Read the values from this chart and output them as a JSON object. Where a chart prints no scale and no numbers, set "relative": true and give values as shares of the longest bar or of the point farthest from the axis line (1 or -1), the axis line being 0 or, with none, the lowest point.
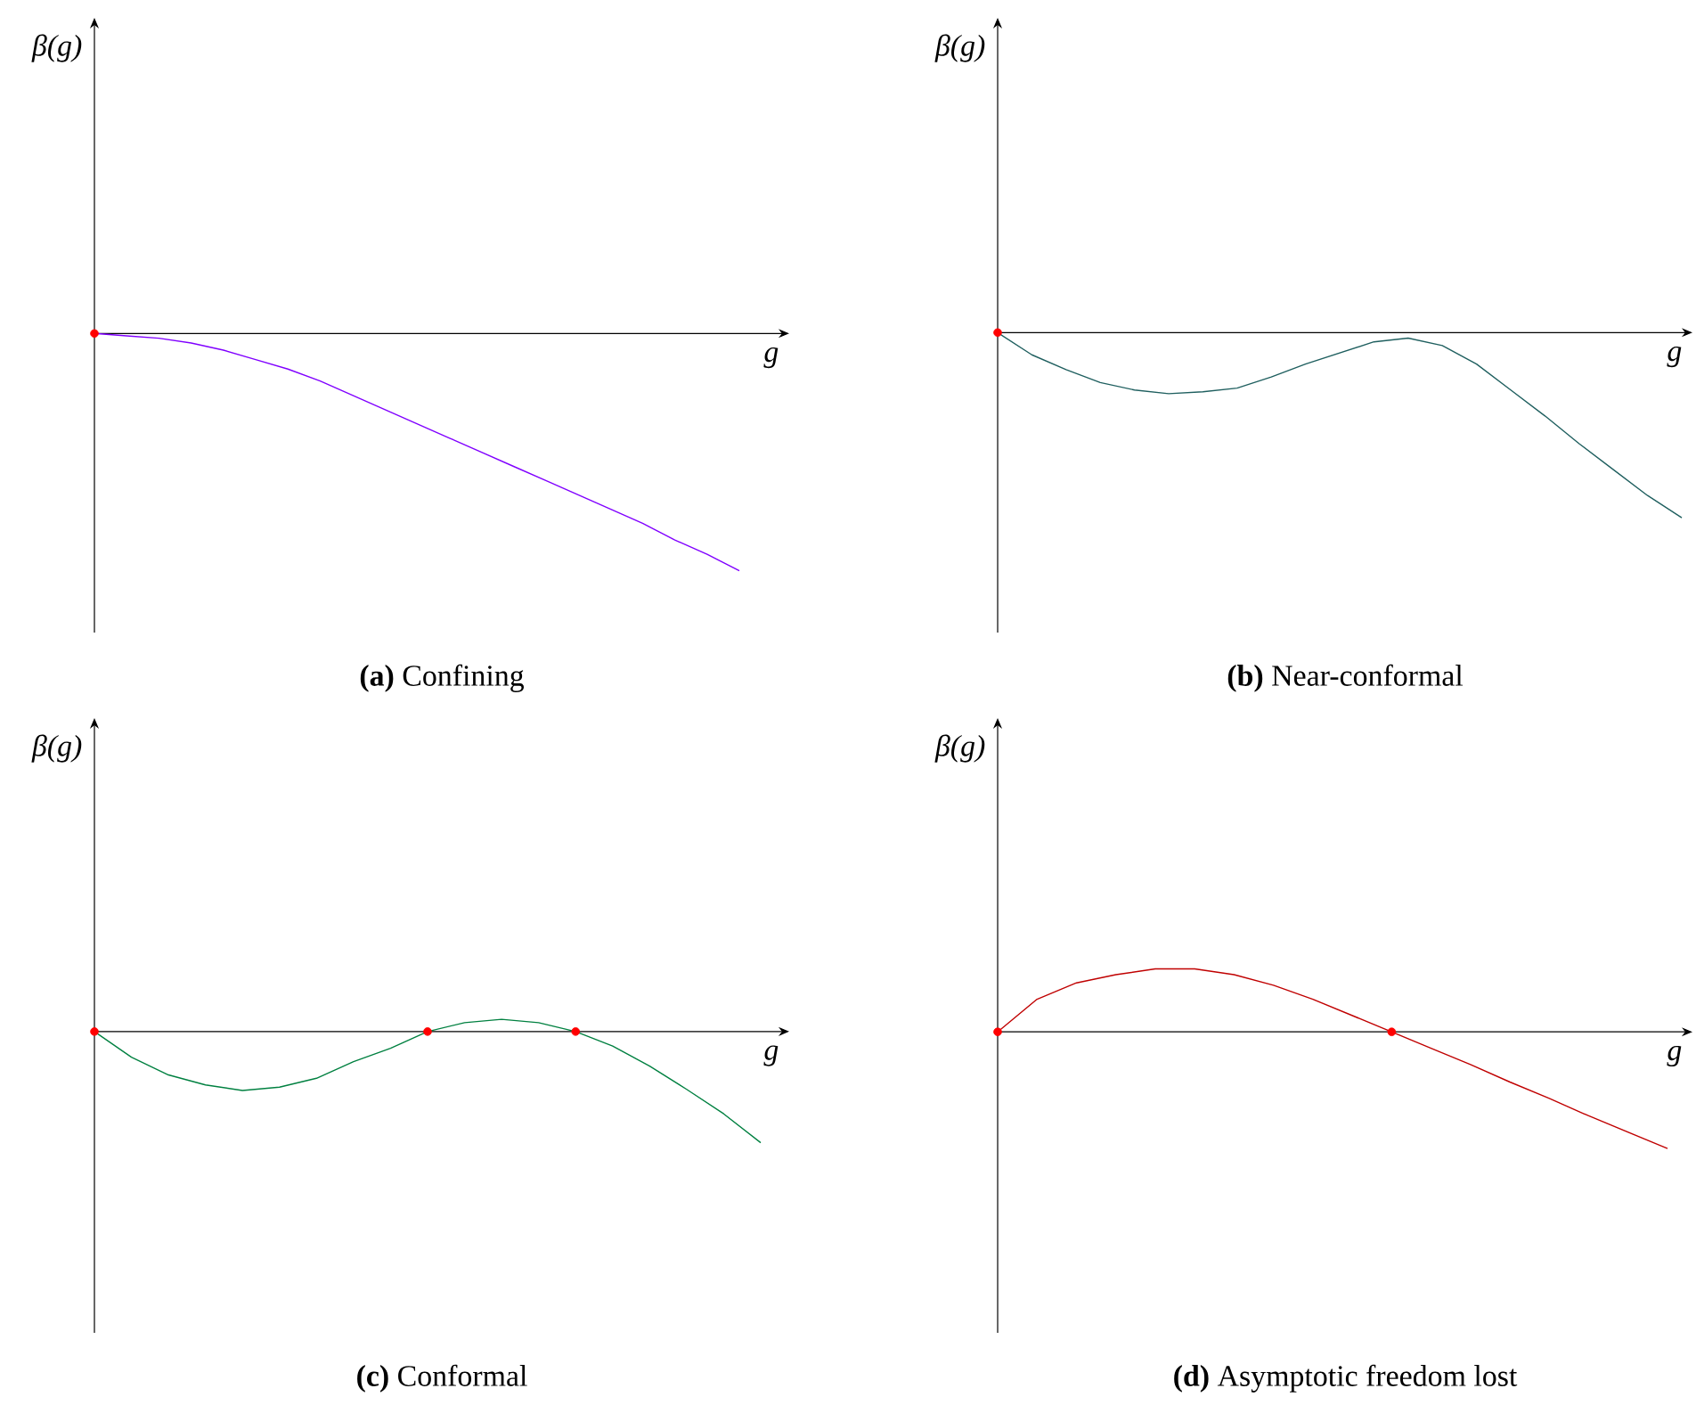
{
  "chart_data": [
    {
      "type": "line",
      "title": "**(a)** Confining",
      "xlabel": "g",
      "ylabel": "β(g)",
      "relative": true,
      "categories": [
        null,
        null,
        null,
        null,
        null,
        null,
        null,
        null,
        null,
        null,
        null,
        null,
        null,
        null,
        null,
        null,
        null,
        null,
        null,
        null,
        null
      ],
      "series": [
        {
          "color": "#8000ff",
          "marker": "none",
          "values": [
            0,
            -0.01,
            -0.02,
            -0.04,
            -0.07,
            -0.11,
            -0.15,
            -0.2,
            -0.26,
            -0.32,
            -0.38,
            -0.44,
            -0.5,
            -0.56,
            -0.62,
            -0.68,
            -0.74,
            -0.8,
            -0.87,
            -0.93,
            -1
          ]
        }
      ]
    },
    {
      "type": "line",
      "title": "**(b)** Near-conformal",
      "xlabel": "g",
      "ylabel": "β(g)",
      "relative": true,
      "categories": [
        null,
        null,
        null,
        null,
        null,
        null,
        null,
        null,
        null,
        null,
        null,
        null,
        null,
        null,
        null,
        null,
        null,
        null,
        null,
        null,
        null
      ],
      "series": [
        {
          "color": "#1f5f5f",
          "marker": "none",
          "values": [
            0,
            -0.12,
            -0.2,
            -0.27,
            -0.31,
            -0.33,
            -0.32,
            -0.3,
            -0.24,
            -0.17,
            -0.11,
            -0.05,
            -0.03,
            -0.07,
            -0.17,
            -0.31,
            -0.45,
            -0.6,
            -0.74,
            -0.88,
            -1
          ]
        }
      ]
    },
    {
      "type": "line",
      "title": "**(c)** Conformal",
      "xlabel": "g",
      "ylabel": "β(g)",
      "relative": true,
      "categories": [
        null,
        null,
        null,
        null,
        null,
        null,
        null,
        null,
        null,
        null,
        null,
        null,
        null,
        null,
        null,
        null,
        null,
        null,
        null
      ],
      "series": [
        {
          "color": "#008040",
          "marker": "none",
          "values": [
            0,
            -0.23,
            -0.39,
            -0.48,
            -0.53,
            -0.5,
            -0.42,
            -0.27,
            -0.15,
            0,
            0.08,
            0.11,
            0.08,
            0,
            -0.13,
            -0.31,
            -0.52,
            -0.74,
            -1
          ]
        }
      ]
    },
    {
      "type": "line",
      "title": "**(d)** Asymptotic freedom lost",
      "xlabel": "g",
      "ylabel": "β(g)",
      "relative": true,
      "categories": [
        null,
        null,
        null,
        null,
        null,
        null,
        null,
        null,
        null,
        null,
        null,
        null,
        null,
        null,
        null,
        null,
        null,
        null
      ],
      "series": [
        {
          "color": "#c00000",
          "marker": "none",
          "values": [
            0,
            0.28,
            0.42,
            0.49,
            0.54,
            0.54,
            0.49,
            0.4,
            0.28,
            0.14,
            0,
            -0.14,
            -0.28,
            -0.43,
            -0.57,
            -0.72,
            -0.86,
            -1
          ]
        }
      ]
    }
  ]
}
